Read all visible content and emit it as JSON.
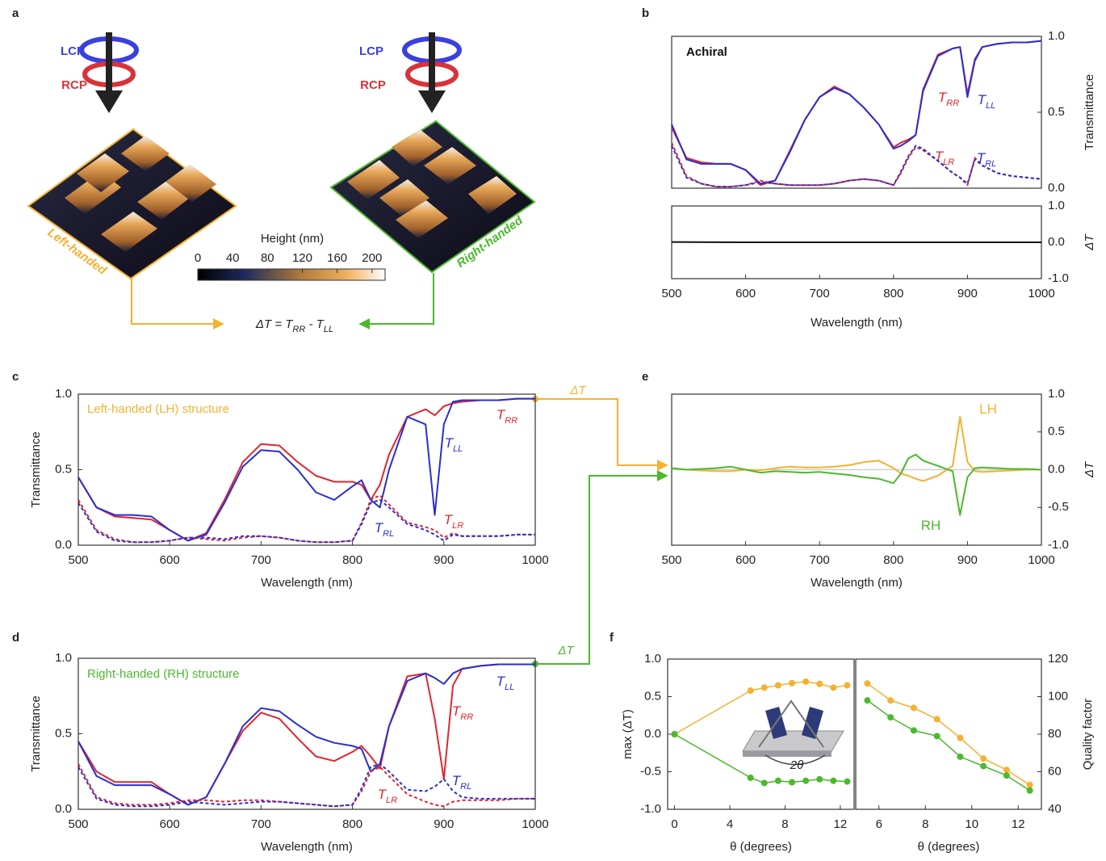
{
  "panel_labels": [
    "a",
    "b",
    "c",
    "d",
    "e",
    "f"
  ],
  "panel_a": {
    "left": {
      "lcp": "LCP",
      "rcp": "RCP",
      "name": "Left-handed"
    },
    "right": {
      "lcp": "LCP",
      "rcp": "RCP",
      "name": "Right-handed"
    },
    "colorbar": {
      "title": "Height (nm)",
      "lim": [
        0,
        215
      ],
      "ticks": [
        0,
        40,
        80,
        120,
        160,
        200
      ]
    },
    "equation": "ΔT = TRR - TLL"
  },
  "connectors": {
    "lh": "ΔT",
    "rh": "ΔT"
  },
  "chart_data": [
    {
      "type": "line",
      "annotation": "Achiral",
      "ylabel": "Transmittance",
      "x": [
        500,
        520,
        540,
        560,
        580,
        600,
        620,
        640,
        660,
        680,
        700,
        720,
        740,
        760,
        780,
        800,
        810,
        820,
        830,
        840,
        860,
        880,
        890,
        900,
        910,
        920,
        940,
        960,
        980,
        1000
      ],
      "xlim": [
        500,
        1000
      ],
      "ylim": [
        0,
        1
      ],
      "yticks": [
        {
          "value": 0,
          "label": "0.0"
        },
        {
          "value": 0.5,
          "label": "0.5"
        },
        {
          "value": 1,
          "label": "1.0"
        }
      ],
      "series": [
        {
          "name": "TRR",
          "color": "#e0262f",
          "dash": false,
          "values": [
            0.4,
            0.2,
            0.17,
            0.16,
            0.16,
            0.12,
            0.02,
            0.05,
            0.25,
            0.45,
            0.6,
            0.67,
            0.62,
            0.53,
            0.42,
            0.27,
            0.3,
            0.32,
            0.35,
            0.65,
            0.88,
            0.92,
            0.93,
            0.62,
            0.85,
            0.93,
            0.95,
            0.96,
            0.96,
            0.97
          ]
        },
        {
          "name": "TLL",
          "color": "#2a2fd0",
          "dash": false,
          "values": [
            0.42,
            0.19,
            0.16,
            0.16,
            0.16,
            0.12,
            0.03,
            0.05,
            0.24,
            0.45,
            0.6,
            0.66,
            0.62,
            0.53,
            0.42,
            0.26,
            0.28,
            0.31,
            0.35,
            0.64,
            0.87,
            0.92,
            0.93,
            0.6,
            0.84,
            0.93,
            0.95,
            0.96,
            0.96,
            0.97
          ]
        },
        {
          "name": "TLR",
          "color": "#e0262f",
          "dash": true,
          "values": [
            0.3,
            0.08,
            0.03,
            0.01,
            0.01,
            0.02,
            0.05,
            0.03,
            0.02,
            0.02,
            0.02,
            0.03,
            0.05,
            0.06,
            0.05,
            0.02,
            0.1,
            0.2,
            0.27,
            0.25,
            0.18,
            0.1,
            0.07,
            0.02,
            0.2,
            0.15,
            0.1,
            0.08,
            0.07,
            0.06
          ]
        },
        {
          "name": "TRL",
          "color": "#2a2fd0",
          "dash": true,
          "values": [
            0.28,
            0.07,
            0.03,
            0.01,
            0.01,
            0.02,
            0.04,
            0.03,
            0.02,
            0.02,
            0.02,
            0.03,
            0.05,
            0.06,
            0.05,
            0.02,
            0.11,
            0.21,
            0.28,
            0.26,
            0.18,
            0.1,
            0.07,
            0.03,
            0.19,
            0.15,
            0.1,
            0.08,
            0.07,
            0.06
          ]
        }
      ]
    },
    {
      "type": "line",
      "xlabel": "Wavelength (nm)",
      "ylabel": "ΔT",
      "x": [
        500,
        600,
        700,
        800,
        900,
        1000
      ],
      "xlim": [
        500,
        1000
      ],
      "xticks": [
        500,
        600,
        700,
        800,
        900,
        1000
      ],
      "ylim": [
        -1,
        1
      ],
      "yticks": [
        {
          "value": -1,
          "label": "-1.0"
        },
        {
          "value": 0,
          "label": "0.0"
        },
        {
          "value": 1,
          "label": "1.0"
        }
      ],
      "series": [
        {
          "color": "#111111",
          "dash": false,
          "values": [
            0.01,
            0,
            0,
            0,
            0,
            0
          ]
        }
      ]
    },
    {
      "type": "line",
      "annotation": "Left-handed (LH) structure",
      "xlabel": "Wavelength (nm)",
      "ylabel": "Transmittance",
      "x": [
        500,
        520,
        540,
        560,
        580,
        600,
        620,
        640,
        660,
        680,
        700,
        720,
        740,
        760,
        780,
        800,
        810,
        820,
        830,
        840,
        860,
        880,
        890,
        900,
        910,
        920,
        940,
        960,
        980,
        1000
      ],
      "xlim": [
        500,
        1000
      ],
      "xticks": [
        500,
        600,
        700,
        800,
        900,
        1000
      ],
      "ylim": [
        0,
        1
      ],
      "yticks": [
        {
          "value": 0,
          "label": "0.0"
        },
        {
          "value": 0.5,
          "label": "0.5"
        },
        {
          "value": 1,
          "label": "1.0"
        }
      ],
      "series": [
        {
          "name": "TRR",
          "color": "#e0262f",
          "dash": false,
          "values": [
            0.45,
            0.25,
            0.19,
            0.18,
            0.17,
            0.1,
            0.03,
            0.08,
            0.3,
            0.55,
            0.67,
            0.66,
            0.55,
            0.46,
            0.42,
            0.42,
            0.4,
            0.3,
            0.4,
            0.6,
            0.85,
            0.9,
            0.86,
            0.92,
            0.94,
            0.95,
            0.96,
            0.96,
            0.97,
            0.97
          ]
        },
        {
          "name": "TLL",
          "color": "#2a2fd0",
          "dash": false,
          "values": [
            0.45,
            0.25,
            0.2,
            0.2,
            0.19,
            0.1,
            0.03,
            0.07,
            0.28,
            0.52,
            0.63,
            0.62,
            0.5,
            0.35,
            0.3,
            0.39,
            0.43,
            0.3,
            0.25,
            0.5,
            0.85,
            0.8,
            0.2,
            0.8,
            0.95,
            0.96,
            0.96,
            0.96,
            0.97,
            0.97
          ]
        },
        {
          "name": "TLR",
          "color": "#e0262f",
          "dash": true,
          "values": [
            0.3,
            0.1,
            0.04,
            0.02,
            0.02,
            0.03,
            0.05,
            0.04,
            0.03,
            0.05,
            0.06,
            0.05,
            0.03,
            0.02,
            0.02,
            0.03,
            0.15,
            0.3,
            0.33,
            0.27,
            0.15,
            0.12,
            0.1,
            0.05,
            0.08,
            0.06,
            0.06,
            0.06,
            0.07,
            0.07
          ]
        },
        {
          "name": "TRL",
          "color": "#2a2fd0",
          "dash": true,
          "values": [
            0.28,
            0.09,
            0.03,
            0.02,
            0.02,
            0.03,
            0.05,
            0.05,
            0.04,
            0.06,
            0.06,
            0.05,
            0.03,
            0.02,
            0.02,
            0.03,
            0.14,
            0.28,
            0.3,
            0.25,
            0.14,
            0.1,
            0.07,
            0.03,
            0.07,
            0.06,
            0.06,
            0.06,
            0.07,
            0.07
          ]
        }
      ]
    },
    {
      "type": "line",
      "annotation": "Right-handed (RH) structure",
      "xlabel": "Wavelength (nm)",
      "ylabel": "Transmittance",
      "x": [
        500,
        520,
        540,
        560,
        580,
        600,
        620,
        640,
        660,
        680,
        700,
        720,
        740,
        760,
        780,
        800,
        810,
        820,
        830,
        840,
        860,
        880,
        890,
        900,
        910,
        920,
        940,
        960,
        980,
        1000
      ],
      "xlim": [
        500,
        1000
      ],
      "xticks": [
        500,
        600,
        700,
        800,
        900,
        1000
      ],
      "ylim": [
        0,
        1
      ],
      "yticks": [
        {
          "value": 0,
          "label": "0.0"
        },
        {
          "value": 0.5,
          "label": "0.5"
        },
        {
          "value": 1,
          "label": "1.0"
        }
      ],
      "series": [
        {
          "name": "TRR",
          "color": "#e0262f",
          "dash": false,
          "values": [
            0.45,
            0.25,
            0.18,
            0.18,
            0.18,
            0.1,
            0.03,
            0.08,
            0.3,
            0.52,
            0.64,
            0.6,
            0.47,
            0.35,
            0.32,
            0.38,
            0.42,
            0.35,
            0.27,
            0.55,
            0.88,
            0.9,
            0.6,
            0.2,
            0.82,
            0.93,
            0.95,
            0.96,
            0.96,
            0.96
          ]
        },
        {
          "name": "TLL",
          "color": "#2a2fd0",
          "dash": false,
          "values": [
            0.45,
            0.22,
            0.16,
            0.16,
            0.16,
            0.1,
            0.03,
            0.08,
            0.3,
            0.55,
            0.67,
            0.65,
            0.56,
            0.48,
            0.44,
            0.42,
            0.4,
            0.25,
            0.3,
            0.55,
            0.85,
            0.9,
            0.87,
            0.83,
            0.9,
            0.93,
            0.95,
            0.96,
            0.96,
            0.96
          ]
        },
        {
          "name": "TLR",
          "color": "#e0262f",
          "dash": true,
          "values": [
            0.3,
            0.08,
            0.04,
            0.03,
            0.03,
            0.04,
            0.06,
            0.06,
            0.05,
            0.06,
            0.06,
            0.05,
            0.04,
            0.03,
            0.02,
            0.03,
            0.12,
            0.25,
            0.28,
            0.22,
            0.1,
            0.05,
            0.03,
            0.02,
            0.05,
            0.06,
            0.06,
            0.06,
            0.07,
            0.07
          ]
        },
        {
          "name": "TRL",
          "color": "#2a2fd0",
          "dash": true,
          "values": [
            0.28,
            0.07,
            0.03,
            0.02,
            0.02,
            0.03,
            0.05,
            0.04,
            0.03,
            0.04,
            0.05,
            0.05,
            0.04,
            0.03,
            0.02,
            0.03,
            0.14,
            0.28,
            0.3,
            0.25,
            0.13,
            0.12,
            0.15,
            0.2,
            0.12,
            0.08,
            0.07,
            0.07,
            0.07,
            0.07
          ]
        }
      ]
    },
    {
      "type": "line",
      "xlabel": "Wavelength (nm)",
      "ylabel": "ΔT",
      "x": [
        500,
        520,
        540,
        560,
        580,
        600,
        620,
        640,
        660,
        680,
        700,
        720,
        740,
        760,
        780,
        800,
        810,
        820,
        830,
        840,
        860,
        880,
        890,
        900,
        910,
        920,
        940,
        960,
        980,
        1000
      ],
      "xlim": [
        500,
        1000
      ],
      "xticks": [
        500,
        600,
        700,
        800,
        900,
        1000
      ],
      "ylim": [
        -1,
        1
      ],
      "yticks": [
        {
          "value": -1,
          "label": "-1.0"
        },
        {
          "value": -0.5,
          "label": "-0.5"
        },
        {
          "value": 0,
          "label": "0.0"
        },
        {
          "value": 0.5,
          "label": "0.5"
        },
        {
          "value": 1,
          "label": "1.0"
        }
      ],
      "series": [
        {
          "name": "LH",
          "color": "#f5b130",
          "dash": false,
          "values": [
            0.02,
            0,
            -0.01,
            -0.02,
            -0.02,
            0,
            -0.01,
            0.02,
            0.04,
            0.03,
            0.03,
            0.04,
            0.06,
            0.1,
            0.12,
            0.02,
            -0.05,
            -0.08,
            -0.12,
            -0.15,
            -0.08,
            0.05,
            0.7,
            0.1,
            -0.02,
            -0.03,
            -0.02,
            -0.01,
            0,
            0
          ]
        },
        {
          "name": "RH",
          "color": "#4cb82d",
          "dash": false,
          "values": [
            0.02,
            0,
            0.01,
            0.02,
            0.04,
            0,
            -0.04,
            -0.02,
            -0.03,
            -0.04,
            -0.03,
            -0.05,
            -0.07,
            -0.1,
            -0.12,
            -0.18,
            -0.05,
            0.15,
            0.2,
            0.12,
            0.05,
            -0.02,
            -0.6,
            -0.1,
            0.02,
            0.03,
            0.02,
            0.01,
            0.01,
            0
          ]
        }
      ]
    },
    {
      "type": "line",
      "markers": true,
      "xlabel": "θ (degrees)",
      "ylabel": "max (ΔT)",
      "inset_label": "2θ",
      "x": [
        0,
        5.5,
        6.5,
        7.5,
        8.5,
        9.5,
        10.5,
        11.5,
        12.5
      ],
      "xlim": [
        -0.5,
        13
      ],
      "xticks": [
        0,
        4,
        8,
        12
      ],
      "ylim": [
        -1,
        1
      ],
      "yticks": [
        {
          "value": -1,
          "label": "-1.0"
        },
        {
          "value": -0.5,
          "label": "-0.5"
        },
        {
          "value": 0,
          "label": "0.0"
        },
        {
          "value": 0.5,
          "label": "0.5"
        },
        {
          "value": 1,
          "label": "1.0"
        }
      ],
      "series": [
        {
          "color": "#f5b130",
          "dash": false,
          "values": [
            0,
            0.58,
            0.62,
            0.65,
            0.68,
            0.7,
            0.67,
            0.62,
            0.65
          ]
        },
        {
          "color": "#4cb82d",
          "dash": false,
          "values": [
            0,
            -0.58,
            -0.65,
            -0.62,
            -0.64,
            -0.62,
            -0.6,
            -0.62,
            -0.63
          ]
        }
      ]
    },
    {
      "type": "line",
      "markers": true,
      "xlabel": "θ (degrees)",
      "ylabel": "Quality factor",
      "x": [
        5.5,
        6.5,
        7.5,
        8.5,
        9.5,
        10.5,
        11.5,
        12.5
      ],
      "xlim": [
        5,
        13
      ],
      "xticks": [
        6,
        8,
        10,
        12
      ],
      "ylim": [
        40,
        120
      ],
      "yticks": [
        40,
        60,
        80,
        100,
        120
      ],
      "series": [
        {
          "color": "#f5b130",
          "dash": false,
          "values": [
            107,
            98,
            94,
            88,
            78,
            67,
            61,
            53
          ]
        },
        {
          "color": "#4cb82d",
          "dash": false,
          "values": [
            98,
            89,
            82,
            79,
            68,
            63,
            58,
            50
          ]
        }
      ]
    }
  ]
}
